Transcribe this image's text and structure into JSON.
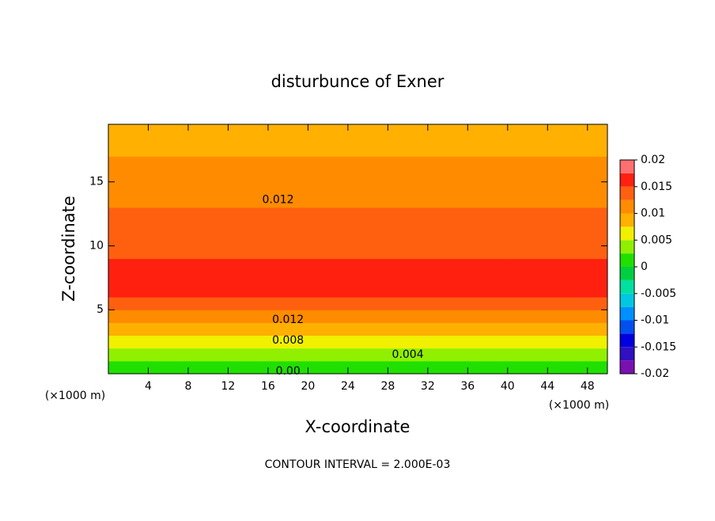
{
  "chart_data": {
    "type": "contour",
    "title": "disturbunce of Exner",
    "x_label": "X-coordinate",
    "y_label": "Z-coordinate",
    "x_unit": "(×1000 m)",
    "y_unit": "(×1000 m)",
    "footer": "CONTOUR INTERVAL = 2.000E-03",
    "xlim": [
      0,
      50
    ],
    "ylim": [
      0,
      19.5
    ],
    "xticks": [
      4,
      8,
      12,
      16,
      20,
      24,
      28,
      32,
      36,
      40,
      44,
      48
    ],
    "yticks": [
      5,
      10,
      15
    ],
    "x_edges": [
      0,
      10,
      20,
      30,
      40,
      50
    ],
    "y_edges": [
      0,
      1,
      2,
      3,
      4,
      5,
      6,
      7,
      8,
      9,
      10,
      11,
      12,
      13,
      14,
      15,
      16,
      17,
      18,
      19.5
    ],
    "z": [
      [
        0.001,
        0.001,
        0.001,
        0.001,
        0.001
      ],
      [
        0.003,
        0.003,
        0.0032,
        0.003,
        0.003
      ],
      [
        0.006,
        0.0062,
        0.006,
        0.0062,
        0.006
      ],
      [
        0.009,
        0.0092,
        0.009,
        0.0092,
        0.009
      ],
      [
        0.012,
        0.0118,
        0.012,
        0.0122,
        0.012
      ],
      [
        0.0135,
        0.014,
        0.0135,
        0.014,
        0.0135
      ],
      [
        0.0155,
        0.0158,
        0.0155,
        0.0155,
        0.0155
      ],
      [
        0.016,
        0.0165,
        0.016,
        0.016,
        0.0162
      ],
      [
        0.0155,
        0.016,
        0.0155,
        0.0155,
        0.0155
      ],
      [
        0.0145,
        0.0148,
        0.0145,
        0.0145,
        0.0145
      ],
      [
        0.014,
        0.0145,
        0.014,
        0.014,
        0.014
      ],
      [
        0.0135,
        0.0138,
        0.0135,
        0.0135,
        0.0135
      ],
      [
        0.0125,
        0.0128,
        0.0125,
        0.0125,
        0.0125
      ],
      [
        0.012,
        0.0122,
        0.012,
        0.012,
        0.012
      ],
      [
        0.0115,
        0.0118,
        0.0115,
        0.0115,
        0.0115
      ],
      [
        0.011,
        0.0112,
        0.011,
        0.011,
        0.011
      ],
      [
        0.01,
        0.0105,
        0.01,
        0.01,
        0.01
      ],
      [
        0.0095,
        0.0098,
        0.0095,
        0.0095,
        0.0095
      ],
      [
        0.009,
        0.009,
        0.009,
        0.009,
        0.009
      ]
    ],
    "levels": [
      -0.02,
      -0.0175,
      -0.015,
      -0.0125,
      -0.01,
      -0.0075,
      -0.005,
      -0.0025,
      0,
      0.0025,
      0.005,
      0.0075,
      0.01,
      0.0125,
      0.015,
      0.0175,
      0.02
    ],
    "level_colors": [
      "#7a10b0",
      "#3010c0",
      "#0000e0",
      "#0050f0",
      "#0090ff",
      "#00c8e0",
      "#00e0a0",
      "#00d040",
      "#20e000",
      "#90f000",
      "#f0f000",
      "#ffb000",
      "#ff8c00",
      "#ff6010",
      "#ff2010",
      "#ff7070"
    ],
    "colorbar_ticks": [
      -0.02,
      -0.015,
      -0.01,
      -0.005,
      0,
      0.005,
      0.01,
      0.015,
      0.02
    ],
    "contour_labels": [
      {
        "text": "0.012",
        "x": 17,
        "y": 13.6
      },
      {
        "text": "0.012",
        "x": 18,
        "y": 4.2
      },
      {
        "text": "0.008",
        "x": 18,
        "y": 2.6
      },
      {
        "text": "0.004",
        "x": 30,
        "y": 1.5
      },
      {
        "text": "0.00",
        "x": 18,
        "y": 0.2
      }
    ]
  }
}
